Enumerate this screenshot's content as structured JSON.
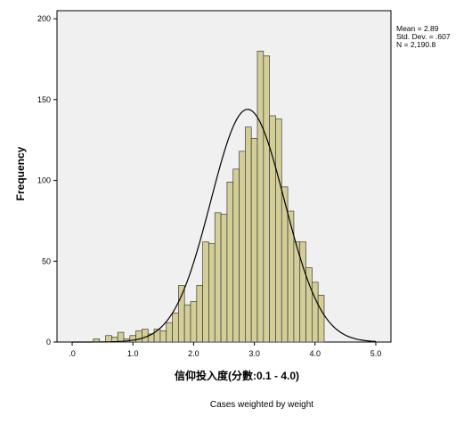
{
  "chart_data": {
    "type": "bar",
    "subtype": "histogram",
    "xlabel": "信仰投入度(分數:0.1 - 4.0)",
    "ylabel": "Frequency",
    "x_tick_labels": [
      ".0",
      "1.0",
      "2.0",
      "3.0",
      "4.0",
      "5.0"
    ],
    "x_ticks": [
      0,
      1,
      2,
      3,
      4,
      5
    ],
    "y_ticks": [
      0,
      50,
      100,
      150,
      200
    ],
    "xlim": [
      -0.25,
      5.25
    ],
    "ylim": [
      0,
      205
    ],
    "bin_width": 0.1,
    "bins": [
      {
        "x0": 0.35,
        "value": 2
      },
      {
        "x0": 0.55,
        "value": 4
      },
      {
        "x0": 0.65,
        "value": 3
      },
      {
        "x0": 0.75,
        "value": 6
      },
      {
        "x0": 0.85,
        "value": 2
      },
      {
        "x0": 0.95,
        "value": 4
      },
      {
        "x0": 1.05,
        "value": 7
      },
      {
        "x0": 1.15,
        "value": 8
      },
      {
        "x0": 1.25,
        "value": 5
      },
      {
        "x0": 1.35,
        "value": 8
      },
      {
        "x0": 1.45,
        "value": 7
      },
      {
        "x0": 1.55,
        "value": 12
      },
      {
        "x0": 1.65,
        "value": 18
      },
      {
        "x0": 1.75,
        "value": 35
      },
      {
        "x0": 1.85,
        "value": 23
      },
      {
        "x0": 1.95,
        "value": 25
      },
      {
        "x0": 2.05,
        "value": 35
      },
      {
        "x0": 2.15,
        "value": 62
      },
      {
        "x0": 2.25,
        "value": 61
      },
      {
        "x0": 2.35,
        "value": 80
      },
      {
        "x0": 2.45,
        "value": 79
      },
      {
        "x0": 2.55,
        "value": 99
      },
      {
        "x0": 2.65,
        "value": 107
      },
      {
        "x0": 2.75,
        "value": 118
      },
      {
        "x0": 2.85,
        "value": 133
      },
      {
        "x0": 2.95,
        "value": 126
      },
      {
        "x0": 3.05,
        "value": 180
      },
      {
        "x0": 3.15,
        "value": 177
      },
      {
        "x0": 3.25,
        "value": 140
      },
      {
        "x0": 3.35,
        "value": 138
      },
      {
        "x0": 3.45,
        "value": 96
      },
      {
        "x0": 3.55,
        "value": 81
      },
      {
        "x0": 3.65,
        "value": 62
      },
      {
        "x0": 3.75,
        "value": 62
      },
      {
        "x0": 3.85,
        "value": 46
      },
      {
        "x0": 3.95,
        "value": 37
      },
      {
        "x0": 4.05,
        "value": 29
      }
    ],
    "normal_curve": {
      "mean": 2.89,
      "sd": 0.607,
      "n": 2190.8
    },
    "stats_text": [
      "Mean = 2.89",
      "Std. Dev. = .607",
      "N = 2,190.8"
    ],
    "footnote": "Cases weighted by weight",
    "colors": {
      "plot_background": "#f0f0f0",
      "bar_fill": "#d3ce97",
      "bar_stroke": "#3c3c3c",
      "curve": "#000000"
    }
  }
}
